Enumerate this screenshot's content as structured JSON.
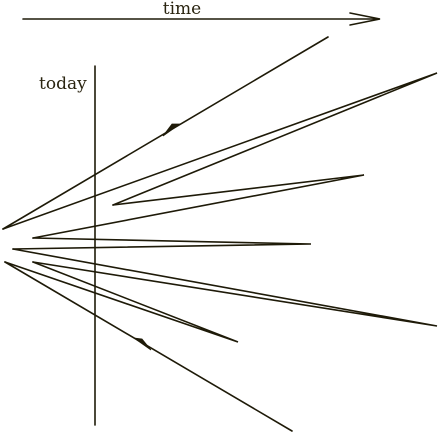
{
  "labels": {
    "time": "time",
    "today": "today"
  },
  "colors": {
    "ink": "#1e1a08",
    "background": "#ffffff"
  }
}
